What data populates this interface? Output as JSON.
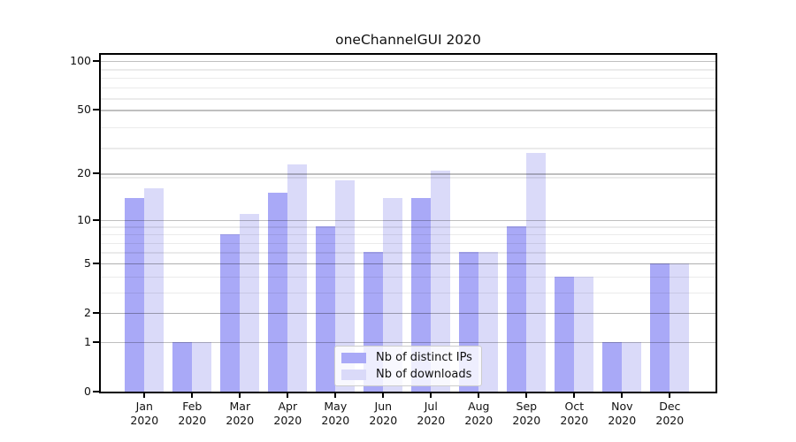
{
  "title": "oneChannelGUI 2020",
  "chart_data": {
    "type": "bar",
    "title": "oneChannelGUI 2020",
    "categories": [
      "Jan",
      "Feb",
      "Mar",
      "Apr",
      "May",
      "Jun",
      "Jul",
      "Aug",
      "Sep",
      "Oct",
      "Nov",
      "Dec"
    ],
    "year_label": "2020",
    "series": [
      {
        "name": "Nb of distinct IPs",
        "color": "#a9a9f7",
        "values": [
          14,
          1,
          8,
          15,
          9,
          6,
          14,
          6,
          9,
          4,
          1,
          5
        ]
      },
      {
        "name": "Nb of downloads",
        "color": "#dadaf9",
        "values": [
          16,
          1,
          11,
          23,
          18,
          14,
          21,
          6,
          27,
          4,
          1,
          5
        ]
      }
    ],
    "xlabel": "",
    "ylabel": "",
    "yscale": "log10(1+x)",
    "yticks": [
      0,
      1,
      2,
      5,
      10,
      20,
      50,
      100
    ],
    "ylim": [
      0,
      112
    ],
    "grid": "horizontal major and minor, drawn over bars",
    "legend_position": "inside bottom-center",
    "colors": {
      "background": "#ffffff",
      "axis": "#000000",
      "major_grid": "#c6c6c6",
      "minor_grid": "#ececec",
      "text": "#111111"
    }
  }
}
